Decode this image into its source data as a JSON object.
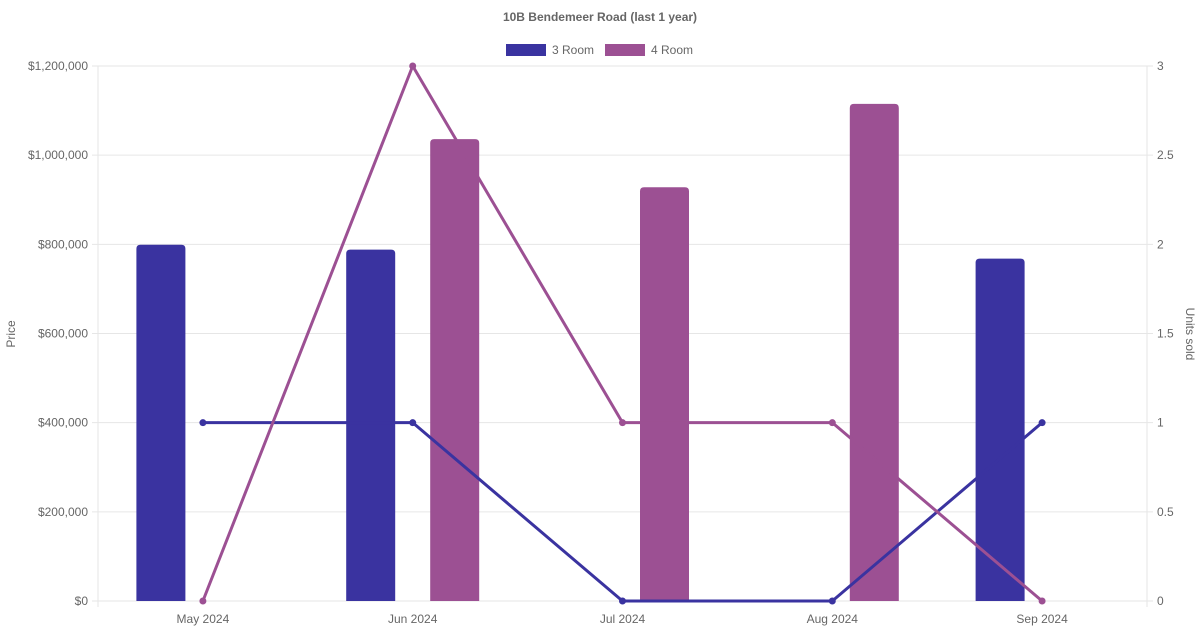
{
  "chart_data": {
    "type": "bar",
    "title": "10B Bendemeer Road (last 1 year)",
    "categories": [
      "May 2024",
      "Jun 2024",
      "Jul 2024",
      "Aug 2024",
      "Sep 2024"
    ],
    "series": [
      {
        "name": "3 Room",
        "color": "#3a33a0",
        "values": [
          799000,
          788000,
          null,
          null,
          768000
        ],
        "units_sold": [
          1,
          1,
          0,
          0,
          1
        ]
      },
      {
        "name": "4 Room",
        "color": "#9c5093",
        "values": [
          null,
          1036000,
          928000,
          1115000,
          null
        ],
        "units_sold": [
          0,
          3,
          1,
          1,
          0
        ]
      }
    ],
    "ylabel": "Price",
    "y2label": "Units sold",
    "ylim": [
      0,
      1200000
    ],
    "y2lim": [
      0,
      3
    ],
    "yticks": [
      "$0",
      "$200,000",
      "$400,000",
      "$600,000",
      "$800,000",
      "$1,000,000",
      "$1,200,000"
    ],
    "y2ticks": [
      "0",
      "0.5",
      "1",
      "1.5",
      "2",
      "2.5",
      "3"
    ],
    "legend_position": "top",
    "grid": true
  }
}
